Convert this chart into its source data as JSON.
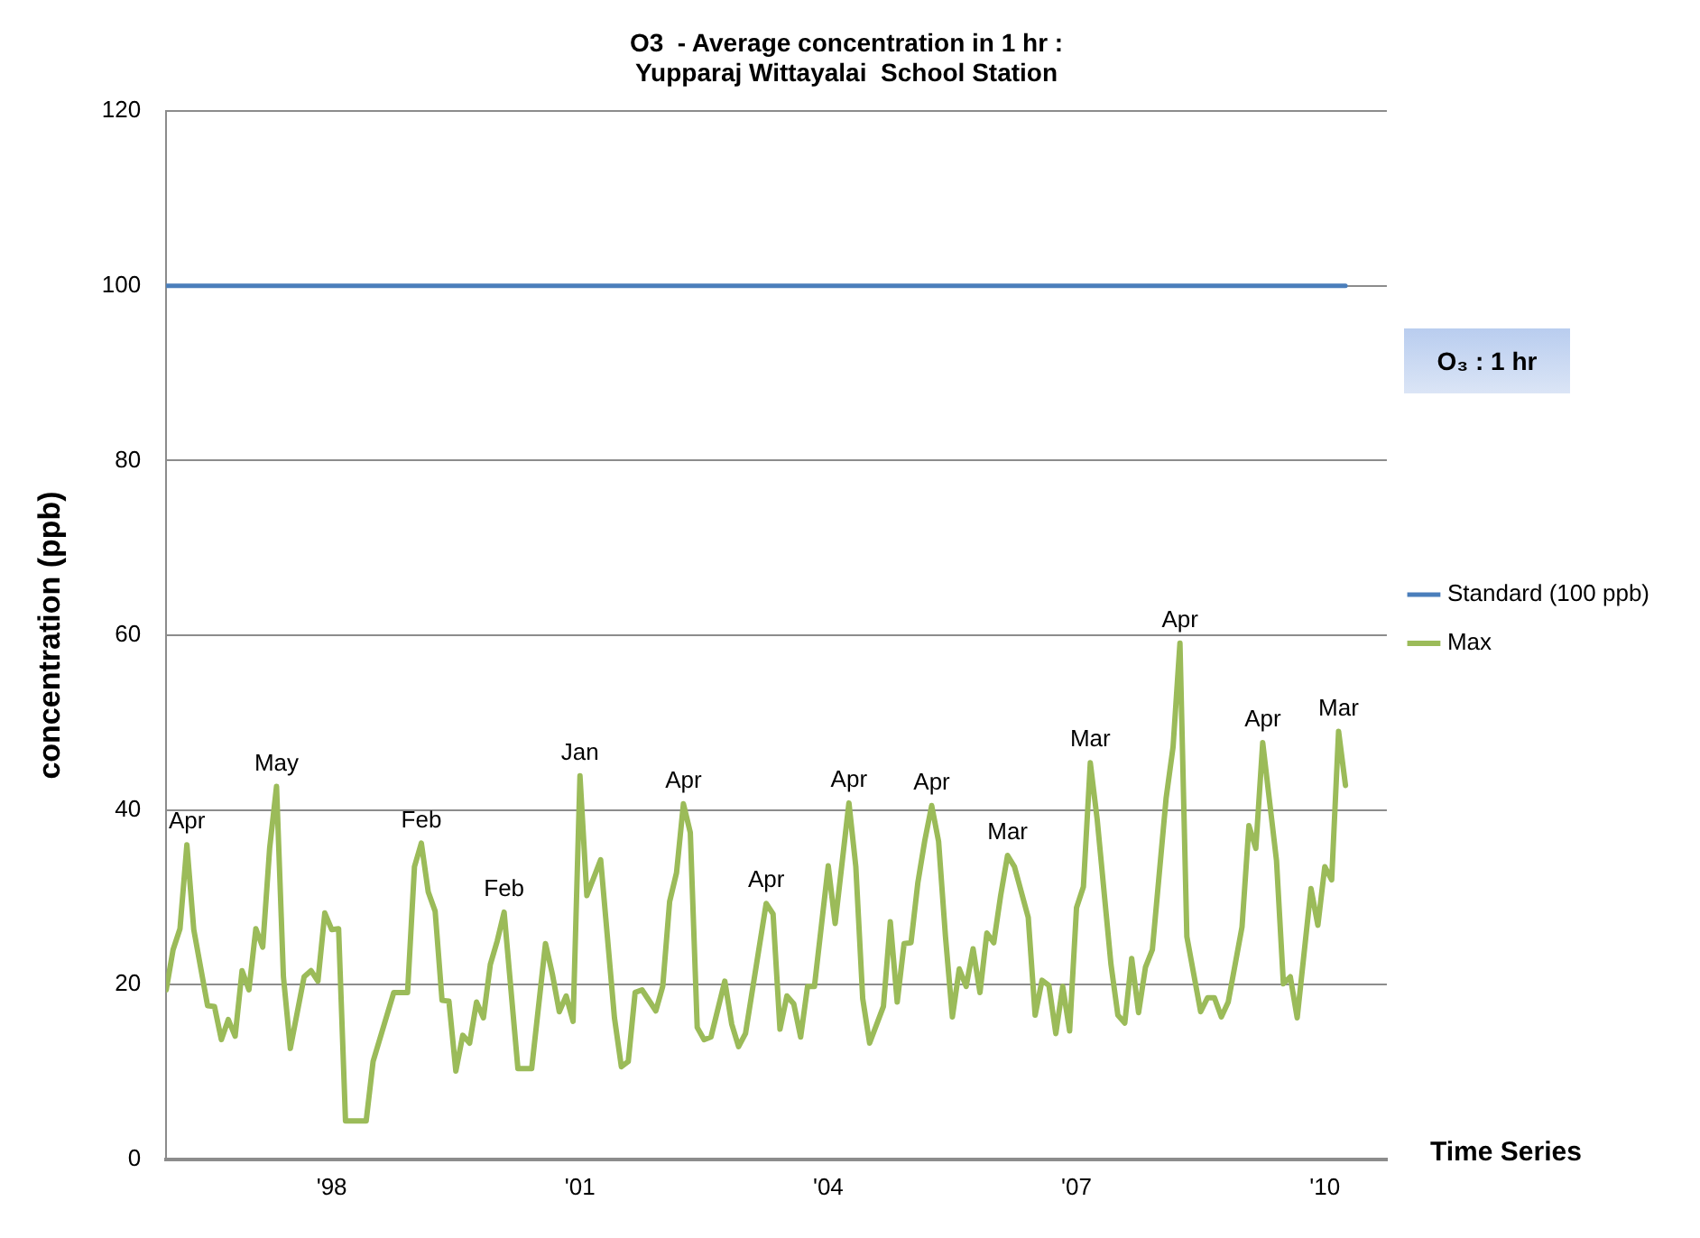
{
  "chart_data": {
    "type": "line",
    "title": "O3  - Average concentration in 1 hr :\nYupparaj Wittayalai  School Station",
    "xlabel": "Time Series",
    "ylabel": "concentration (ppb)",
    "xlim": [
      "1996-01",
      "2010-10"
    ],
    "xticks": [
      {
        "value": "1998-01",
        "label": "'98"
      },
      {
        "value": "2001-01",
        "label": "'01"
      },
      {
        "value": "2004-01",
        "label": "'04"
      },
      {
        "value": "2007-01",
        "label": "'07"
      },
      {
        "value": "2010-01",
        "label": "'10"
      }
    ],
    "ylim": [
      0,
      120
    ],
    "yticks": [
      0,
      20,
      40,
      60,
      80,
      100,
      120
    ],
    "grid": "y",
    "legend": "right",
    "marker": "none",
    "line_style": "solid",
    "series": [
      {
        "name": "Standard (100 ppb)",
        "color": "#4a7ebb",
        "x": [
          "1996-01",
          "2010-04"
        ],
        "values": [
          100,
          100
        ]
      },
      {
        "name": "Max",
        "color": "#9bbb59",
        "x": [
          "1996-01",
          "1996-02",
          "1996-03",
          "1996-04",
          "1996-05",
          "1996-07",
          "1996-08",
          "1996-09",
          "1996-10",
          "1996-11",
          "1996-12",
          "1997-01",
          "1997-02",
          "1997-03",
          "1997-04",
          "1997-05",
          "1997-06",
          "1997-07",
          "1997-09",
          "1997-10",
          "1997-11",
          "1997-12",
          "1998-01",
          "1998-02",
          "1998-03",
          "1998-06",
          "1998-07",
          "1998-10",
          "1998-12",
          "1999-01",
          "1999-02",
          "1999-03",
          "1999-04",
          "1999-05",
          "1999-06",
          "1999-07",
          "1999-08",
          "1999-09",
          "1999-10",
          "1999-11",
          "1999-12",
          "2000-01",
          "2000-02",
          "2000-04",
          "2000-06",
          "2000-08",
          "2000-09",
          "2000-10",
          "2000-11",
          "2000-12",
          "2001-01",
          "2001-02",
          "2001-04",
          "2001-06",
          "2001-07",
          "2001-08",
          "2001-09",
          "2001-10",
          "2001-12",
          "2002-01",
          "2002-02",
          "2002-03",
          "2002-04",
          "2002-05",
          "2002-06",
          "2002-07",
          "2002-08",
          "2002-10",
          "2002-11",
          "2002-12",
          "2003-01",
          "2003-04",
          "2003-05",
          "2003-06",
          "2003-07",
          "2003-08",
          "2003-09",
          "2003-10",
          "2003-11",
          "2004-01",
          "2004-02",
          "2004-04",
          "2004-05",
          "2004-06",
          "2004-07",
          "2004-09",
          "2004-10",
          "2004-11",
          "2004-12",
          "2005-01",
          "2005-02",
          "2005-03",
          "2005-04",
          "2005-05",
          "2005-06",
          "2005-07",
          "2005-08",
          "2005-09",
          "2005-10",
          "2005-11",
          "2005-12",
          "2006-01",
          "2006-02",
          "2006-03",
          "2006-04",
          "2006-06",
          "2006-07",
          "2006-08",
          "2006-09",
          "2006-10",
          "2006-11",
          "2006-12",
          "2007-01",
          "2007-02",
          "2007-03",
          "2007-04",
          "2007-06",
          "2007-07",
          "2007-08",
          "2007-09",
          "2007-10",
          "2007-11",
          "2007-12",
          "2008-02",
          "2008-03",
          "2008-04",
          "2008-05",
          "2008-07",
          "2008-08",
          "2008-09",
          "2008-10",
          "2008-11",
          "2009-01",
          "2009-02",
          "2009-03",
          "2009-04",
          "2009-06",
          "2009-07",
          "2009-08",
          "2009-09",
          "2009-11",
          "2009-12",
          "2010-01",
          "2010-02",
          "2010-03",
          "2010-04"
        ],
        "values": [
          19.4,
          24,
          26.4,
          36,
          26.3,
          17.6,
          17.5,
          13.7,
          16,
          14.1,
          21.6,
          19.4,
          26.4,
          24.3,
          35.6,
          42.7,
          20.9,
          12.7,
          20.9,
          21.6,
          20.4,
          28.2,
          26.3,
          26.4,
          4.4,
          4.4,
          11.2,
          19.1,
          19.1,
          33.5,
          36.2,
          30.6,
          28.4,
          18.2,
          18.1,
          10.1,
          14.2,
          13.3,
          18,
          16.2,
          22.3,
          25,
          28.3,
          10.4,
          10.4,
          24.7,
          21.2,
          16.9,
          18.7,
          15.8,
          43.9,
          30.2,
          34.3,
          16.2,
          10.6,
          11.2,
          19.1,
          19.4,
          17,
          19.8,
          29.5,
          32.8,
          40.7,
          37.4,
          15.1,
          13.7,
          14,
          20.4,
          15.5,
          12.9,
          14.4,
          29.3,
          28.1,
          14.9,
          18.7,
          17.8,
          14,
          19.8,
          19.8,
          33.6,
          27,
          40.8,
          33.5,
          18.4,
          13.3,
          17.5,
          27.2,
          18,
          24.7,
          24.8,
          31.7,
          36.5,
          40.5,
          36.4,
          25.5,
          16.3,
          21.8,
          19.8,
          24.1,
          19.1,
          25.9,
          24.8,
          30.2,
          34.8,
          33.5,
          27.7,
          16.5,
          20.5,
          19.9,
          14.4,
          19.8,
          14.7,
          28.8,
          31.2,
          45.4,
          38.9,
          22.3,
          16.5,
          15.6,
          23,
          16.8,
          22,
          24,
          41.4,
          47.2,
          59.1,
          25.5,
          16.9,
          18.5,
          18.5,
          16.3,
          18,
          26.6,
          38.2,
          35.6,
          47.7,
          34.2,
          20.1,
          20.9,
          16.2,
          31,
          26.8,
          33.5,
          32,
          49,
          42.8
        ]
      }
    ],
    "annotations": [
      {
        "text": "Apr",
        "x": "1996-04",
        "y": 36
      },
      {
        "text": "May",
        "x": "1997-05",
        "y": 42.7
      },
      {
        "text": "Feb",
        "x": "1999-02",
        "y": 36.2
      },
      {
        "text": "Feb",
        "x": "2000-02",
        "y": 28.3
      },
      {
        "text": "Jan",
        "x": "2001-01",
        "y": 43.9
      },
      {
        "text": "Apr",
        "x": "2002-04",
        "y": 40.7
      },
      {
        "text": "Apr",
        "x": "2003-04",
        "y": 29.3
      },
      {
        "text": "Apr",
        "x": "2004-04",
        "y": 40.8
      },
      {
        "text": "Apr",
        "x": "2005-04",
        "y": 40.5
      },
      {
        "text": "Mar",
        "x": "2006-03",
        "y": 34.8
      },
      {
        "text": "Mar",
        "x": "2007-03",
        "y": 45.4
      },
      {
        "text": "Apr",
        "x": "2008-04",
        "y": 59.1
      },
      {
        "text": "Apr",
        "x": "2009-04",
        "y": 47.7
      },
      {
        "text": "Mar",
        "x": "2010-03",
        "y": 49
      },
      "O₃ : 1 hr"
    ]
  }
}
